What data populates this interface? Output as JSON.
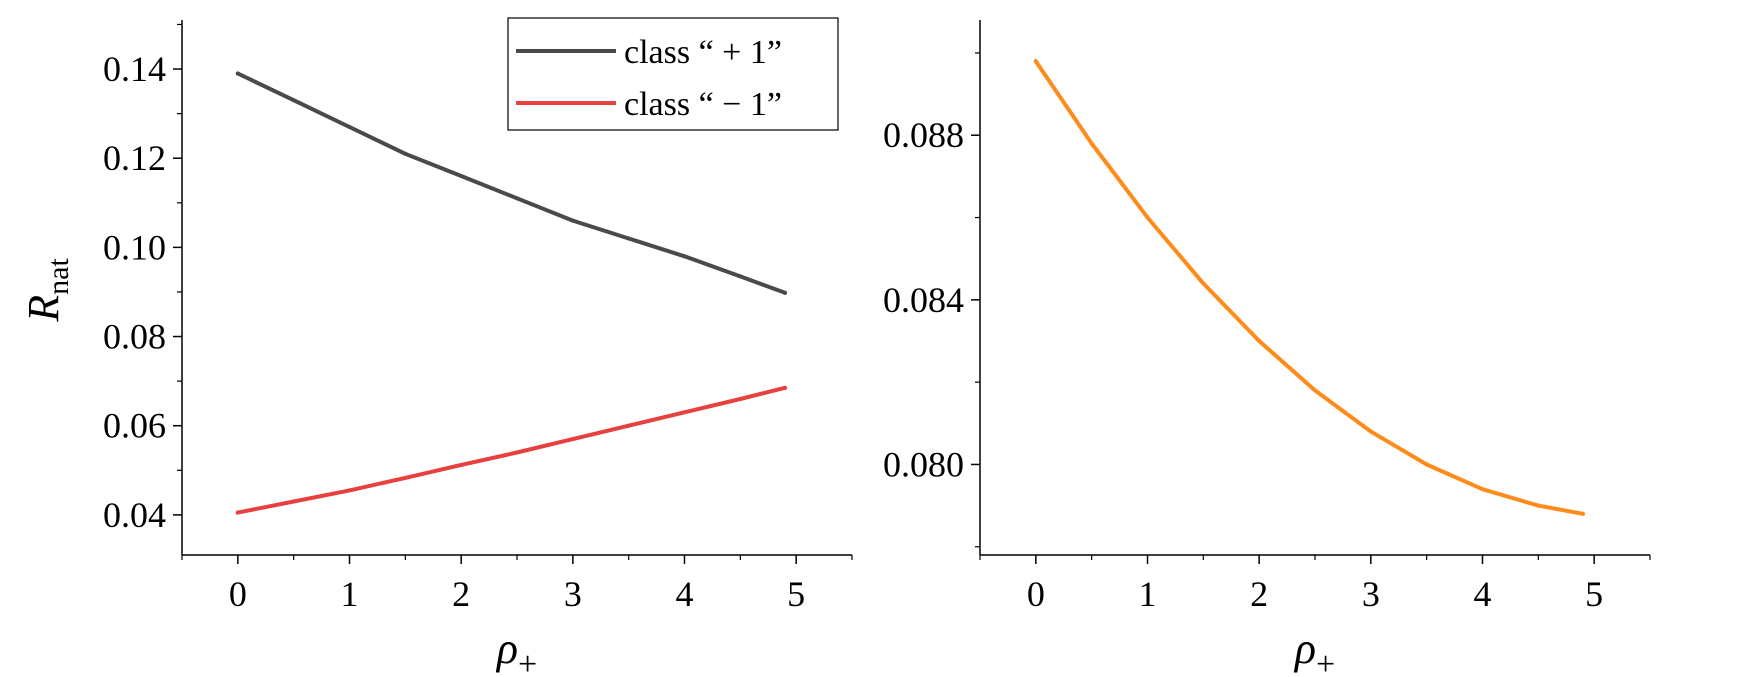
{
  "chart_data": [
    {
      "type": "line",
      "xlabel": "ρ+",
      "ylabel": "Rnat",
      "xlim": [
        -0.5,
        5.5
      ],
      "ylim": [
        0.031,
        0.151
      ],
      "xticks": [
        0,
        1,
        2,
        3,
        4,
        5
      ],
      "xtick_labels": [
        "0",
        "1",
        "2",
        "3",
        "4",
        "5"
      ],
      "yticks": [
        0.04,
        0.06,
        0.08,
        0.1,
        0.12,
        0.14
      ],
      "ytick_labels": [
        "0.04",
        "0.06",
        "0.08",
        "0.10",
        "0.12",
        "0.14"
      ],
      "grid": false,
      "legend": "top-right",
      "series": [
        {
          "name": "class “ + 1”",
          "color": "#4a4a4a",
          "x": [
            0,
            0.5,
            1,
            1.5,
            2,
            2.5,
            3,
            3.5,
            4,
            4.5,
            4.9
          ],
          "y": [
            0.139,
            0.133,
            0.127,
            0.121,
            0.116,
            0.111,
            0.106,
            0.102,
            0.098,
            0.0935,
            0.0898
          ]
        },
        {
          "name": "class “ − 1”",
          "color": "#e8403e",
          "x": [
            0,
            0.5,
            1,
            1.5,
            2,
            2.5,
            3,
            3.5,
            4,
            4.5,
            4.9
          ],
          "y": [
            0.0405,
            0.043,
            0.0455,
            0.0483,
            0.0512,
            0.054,
            0.057,
            0.06,
            0.063,
            0.066,
            0.0685
          ]
        }
      ]
    },
    {
      "type": "line",
      "xlabel": "ρ+",
      "ylabel": "",
      "xlim": [
        -0.5,
        5.5
      ],
      "ylim": [
        0.0778,
        0.0908
      ],
      "xticks": [
        0,
        1,
        2,
        3,
        4,
        5
      ],
      "xtick_labels": [
        "0",
        "1",
        "2",
        "3",
        "4",
        "5"
      ],
      "yticks": [
        0.08,
        0.084,
        0.088
      ],
      "ytick_labels": [
        "0.080",
        "0.084",
        "0.088"
      ],
      "grid": false,
      "series": [
        {
          "color": "#ff8c1a",
          "x": [
            0,
            0.5,
            1,
            1.5,
            2,
            2.5,
            3,
            3.5,
            4,
            4.5,
            4.9
          ],
          "y": [
            0.0898,
            0.0878,
            0.086,
            0.0844,
            0.083,
            0.0818,
            0.0808,
            0.08,
            0.0794,
            0.079,
            0.0788
          ]
        }
      ]
    }
  ]
}
